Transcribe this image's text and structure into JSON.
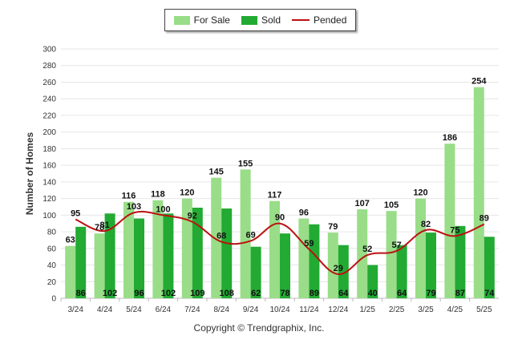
{
  "chart_data": {
    "type": "bar",
    "ylabel": "Number of Homes",
    "ylim": [
      0,
      300
    ],
    "ytick_step": 20,
    "grid": true,
    "legend_position": "top-center",
    "categories": [
      "3/24",
      "4/24",
      "5/24",
      "6/24",
      "7/24",
      "8/24",
      "9/24",
      "10/24",
      "11/24",
      "12/24",
      "1/25",
      "2/25",
      "3/25",
      "4/25",
      "5/25"
    ],
    "series": [
      {
        "name": "For Sale",
        "kind": "bar",
        "color": "#99dd88",
        "values": [
          63,
          78,
          116,
          118,
          120,
          145,
          155,
          117,
          96,
          79,
          107,
          105,
          120,
          186,
          254
        ]
      },
      {
        "name": "Sold",
        "kind": "bar",
        "color": "#22aa33",
        "values": [
          86,
          102,
          96,
          102,
          109,
          108,
          62,
          78,
          89,
          64,
          40,
          64,
          79,
          87,
          74
        ]
      },
      {
        "name": "Pended",
        "kind": "line",
        "color": "#bb1111",
        "values": [
          95,
          81,
          103,
          100,
          92,
          68,
          69,
          90,
          59,
          29,
          52,
          57,
          82,
          75,
          89
        ]
      }
    ]
  },
  "copyright": "Copyright © Trendgraphix, Inc."
}
